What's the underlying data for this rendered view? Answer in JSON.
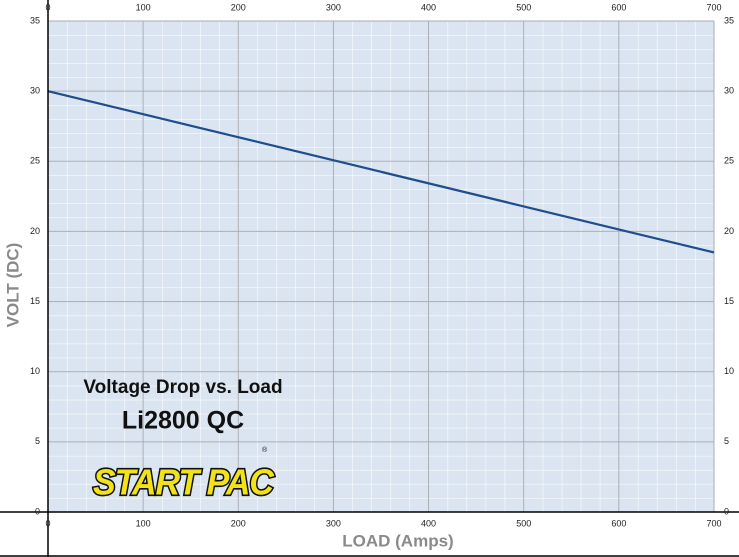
{
  "chart_data": {
    "type": "line",
    "title": "Voltage Drop vs. Load",
    "subtitle": "Li2800 QC",
    "brand": "START PAC",
    "brand_mark": "®",
    "x_label": "LOAD (Amps)",
    "y_label": "VOLT (DC)",
    "x": [
      0,
      700
    ],
    "series": [
      {
        "name": "Li2800 QC",
        "color": "#1f4e8c",
        "values": [
          30,
          18.5
        ]
      }
    ],
    "xlim": [
      0,
      700
    ],
    "xticks": [
      0,
      100,
      200,
      300,
      400,
      500,
      600,
      700
    ],
    "ylim": [
      0,
      35
    ],
    "yticks": [
      0,
      5,
      10,
      15,
      20,
      25,
      30,
      35
    ],
    "grid": true,
    "background": "#dbe5f1"
  }
}
